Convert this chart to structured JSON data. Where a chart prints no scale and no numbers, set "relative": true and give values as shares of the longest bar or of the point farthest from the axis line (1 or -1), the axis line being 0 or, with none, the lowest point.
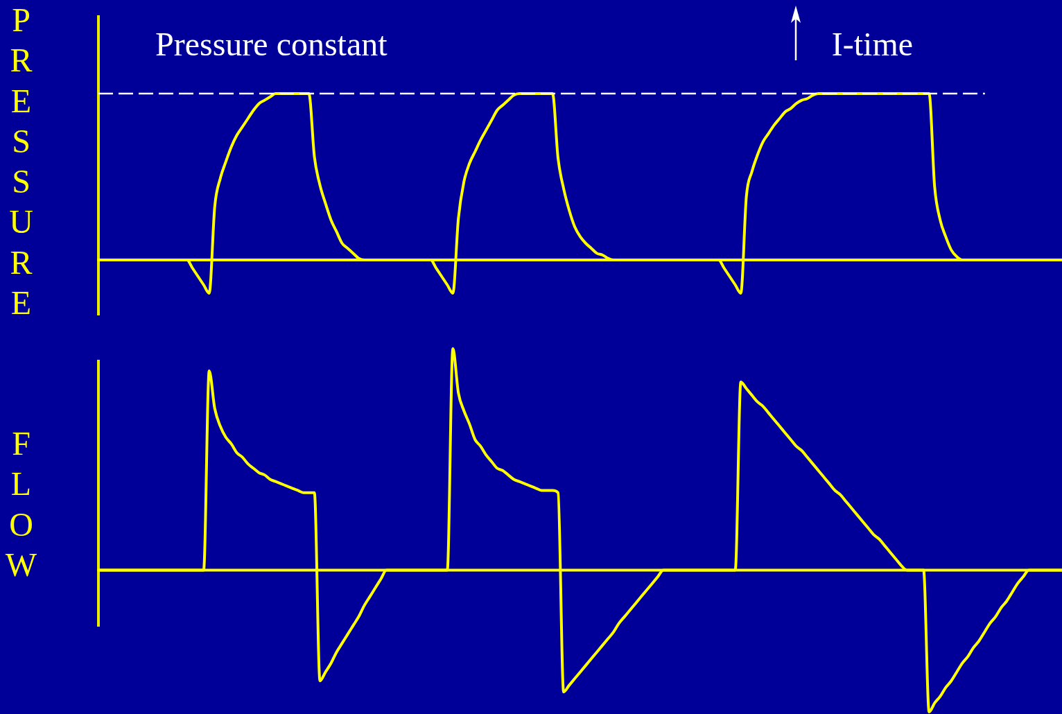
{
  "chart_data": [
    {
      "type": "line",
      "ylabel": "PRESSURE",
      "relative": true,
      "marker": "none",
      "color": "#ffff00",
      "categories": [
        null,
        null,
        null,
        null,
        null,
        null,
        null,
        null,
        null,
        null,
        null,
        null,
        null,
        null,
        null,
        null,
        null,
        null,
        null,
        null,
        null,
        null,
        null,
        null,
        null,
        null,
        null,
        null,
        null,
        null,
        null,
        null,
        null,
        null,
        null,
        null,
        null,
        null,
        null,
        null,
        null,
        null,
        null,
        null,
        null,
        null,
        null,
        null,
        null,
        null,
        null,
        null,
        null,
        null,
        null,
        null,
        null,
        null,
        null,
        null,
        null,
        null,
        null,
        null,
        null,
        null,
        null,
        null,
        null,
        null,
        null,
        null,
        null,
        null,
        null,
        null,
        null,
        null,
        null,
        null,
        null,
        null,
        null,
        null,
        null,
        null,
        null,
        null,
        null,
        null,
        null,
        null,
        null,
        null,
        null,
        null,
        null,
        null,
        null,
        null,
        null,
        null,
        null,
        null,
        null,
        null,
        null,
        null,
        null,
        null,
        null,
        null,
        null,
        null,
        null,
        null,
        null,
        null,
        null,
        null,
        null,
        null,
        null,
        null,
        null,
        null,
        null,
        null,
        null,
        null,
        null,
        null,
        null,
        null,
        null,
        null,
        null,
        null,
        null,
        null,
        null,
        null,
        null,
        null,
        null,
        null,
        null,
        null,
        null,
        null,
        null,
        null,
        null,
        null,
        null,
        null,
        null,
        null,
        null,
        null,
        null,
        null,
        null,
        null,
        null,
        null,
        null,
        null,
        null,
        null,
        null,
        null,
        null,
        null,
        null
      ],
      "values": [
        0,
        0,
        0,
        0,
        0,
        0,
        0,
        0,
        0,
        0,
        0,
        0,
        0,
        0,
        0,
        0,
        0,
        -0.05,
        -0.1,
        -0.15,
        -0.2,
        0.32,
        0.49,
        0.59,
        0.68,
        0.75,
        0.8,
        0.85,
        0.9,
        0.94,
        0.96,
        0.98,
        1,
        1,
        1,
        1,
        1,
        1,
        1,
        0.62,
        0.45,
        0.34,
        0.24,
        0.17,
        0.1,
        0.07,
        0.04,
        0.01,
        0,
        0,
        0,
        0,
        0,
        0,
        0,
        0,
        0,
        0,
        0,
        0,
        0,
        -0.05,
        -0.1,
        -0.15,
        -0.2,
        0.25,
        0.47,
        0.58,
        0.65,
        0.72,
        0.78,
        0.84,
        0.9,
        0.93,
        0.96,
        0.99,
        1,
        1,
        1,
        1,
        1,
        1,
        1,
        0.61,
        0.43,
        0.3,
        0.2,
        0.14,
        0.1,
        0.07,
        0.04,
        0.03,
        0.01,
        0,
        0,
        0,
        0,
        0,
        0,
        0,
        0,
        0,
        0,
        0,
        0,
        0,
        0,
        0,
        0,
        0,
        0,
        0,
        0,
        -0.05,
        -0.1,
        -0.15,
        -0.2,
        0.38,
        0.53,
        0.63,
        0.71,
        0.76,
        0.81,
        0.85,
        0.89,
        0.91,
        0.94,
        0.96,
        0.97,
        0.99,
        1,
        1,
        1,
        1,
        1,
        1,
        1,
        1,
        1,
        1,
        1,
        1,
        1,
        1,
        1,
        1,
        1,
        1,
        1,
        1,
        1,
        0.44,
        0.24,
        0.14,
        0.06,
        0.02,
        0,
        0,
        0,
        0,
        0,
        0,
        0,
        0,
        0,
        0,
        0,
        0,
        0,
        0,
        0,
        0,
        0,
        0,
        0
      ],
      "ref_lines": [
        {
          "axis": "y",
          "value": 1,
          "label": "Pressure constant",
          "color": "#ffffff",
          "line_style": "dashed"
        },
        {
          "axis": "y",
          "value": 0,
          "color": "#ffff00"
        }
      ],
      "annotations": [
        "I-time"
      ]
    },
    {
      "type": "line",
      "ylabel": "FLOW",
      "relative": true,
      "marker": "none",
      "color": "#ffff00",
      "categories": [
        null,
        null,
        null,
        null,
        null,
        null,
        null,
        null,
        null,
        null,
        null,
        null,
        null,
        null,
        null,
        null,
        null,
        null,
        null,
        null,
        null,
        null,
        null,
        null,
        null,
        null,
        null,
        null,
        null,
        null,
        null,
        null,
        null,
        null,
        null,
        null,
        null,
        null,
        null,
        null,
        null,
        null,
        null,
        null,
        null,
        null,
        null,
        null,
        null,
        null,
        null,
        null,
        null,
        null,
        null,
        null,
        null,
        null,
        null,
        null,
        null,
        null,
        null,
        null,
        null,
        null,
        null,
        null,
        null,
        null,
        null,
        null,
        null,
        null,
        null,
        null,
        null,
        null,
        null,
        null,
        null,
        null,
        null,
        null,
        null,
        null,
        null,
        null,
        null,
        null,
        null,
        null,
        null,
        null,
        null,
        null,
        null,
        null,
        null,
        null,
        null,
        null,
        null,
        null,
        null,
        null,
        null,
        null,
        null,
        null,
        null,
        null,
        null,
        null,
        null,
        null,
        null,
        null,
        null,
        null,
        null,
        null,
        null,
        null,
        null,
        null,
        null,
        null,
        null,
        null,
        null,
        null,
        null,
        null,
        null,
        null,
        null,
        null,
        null,
        null,
        null,
        null,
        null,
        null,
        null,
        null,
        null,
        null,
        null,
        null,
        null,
        null,
        null,
        null,
        null,
        null,
        null,
        null,
        null,
        null,
        null,
        null,
        null,
        null,
        null,
        null,
        null,
        null,
        null,
        null,
        null,
        null,
        null,
        null,
        null
      ],
      "values": [
        0,
        0,
        0,
        0,
        0,
        0,
        0,
        0,
        0,
        0,
        0,
        0,
        0,
        0,
        0,
        0,
        0,
        0,
        0,
        0,
        0.9,
        0.73,
        0.65,
        0.6,
        0.57,
        0.53,
        0.51,
        0.48,
        0.46,
        0.44,
        0.43,
        0.41,
        0.4,
        0.39,
        0.38,
        0.37,
        0.36,
        0.35,
        0.35,
        0.35,
        -0.5,
        -0.46,
        -0.42,
        -0.37,
        -0.33,
        -0.29,
        -0.25,
        -0.21,
        -0.16,
        -0.12,
        -0.08,
        -0.04,
        0,
        0,
        0,
        0,
        0,
        0,
        0,
        0,
        0,
        0,
        0,
        0,
        1,
        0.8,
        0.72,
        0.66,
        0.59,
        0.56,
        0.52,
        0.49,
        0.46,
        0.45,
        0.43,
        0.41,
        0.4,
        0.39,
        0.38,
        0.37,
        0.36,
        0.36,
        0.36,
        0.35,
        -0.55,
        -0.52,
        -0.49,
        -0.46,
        -0.43,
        -0.4,
        -0.37,
        -0.34,
        -0.31,
        -0.28,
        -0.24,
        -0.21,
        -0.18,
        -0.15,
        -0.12,
        -0.09,
        -0.06,
        -0.03,
        0,
        0,
        0,
        0,
        0,
        0,
        0,
        0,
        0,
        0,
        0,
        0,
        0,
        0,
        0.85,
        0.82,
        0.79,
        0.76,
        0.74,
        0.71,
        0.68,
        0.65,
        0.62,
        0.59,
        0.56,
        0.54,
        0.51,
        0.48,
        0.45,
        0.42,
        0.39,
        0.36,
        0.34,
        0.31,
        0.28,
        0.25,
        0.22,
        0.19,
        0.16,
        0.14,
        0.11,
        0.08,
        0.05,
        0.02,
        0,
        0,
        0,
        0,
        -0.64,
        -0.6,
        -0.57,
        -0.53,
        -0.5,
        -0.46,
        -0.42,
        -0.39,
        -0.35,
        -0.32,
        -0.28,
        -0.24,
        -0.21,
        -0.17,
        -0.14,
        -0.1,
        -0.06,
        -0.03,
        0,
        0,
        0,
        0,
        0,
        0,
        0
      ],
      "ref_lines": [
        {
          "axis": "y",
          "value": 0,
          "color": "#ffff00"
        }
      ]
    }
  ]
}
